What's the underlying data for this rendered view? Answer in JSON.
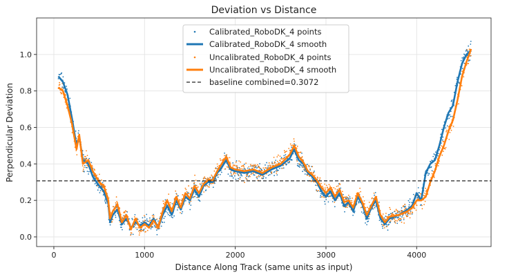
{
  "chart_data": {
    "type": "scatter",
    "title": "Deviation vs Distance",
    "xlabel": "Distance Along Track (same units as input)",
    "ylabel": "Perpendicular Deviation",
    "xlim": [
      -190,
      4820
    ],
    "ylim": [
      -0.053,
      1.2
    ],
    "xticks": [
      0,
      1000,
      2000,
      3000,
      4000
    ],
    "yticks": [
      0.0,
      0.2,
      0.4,
      0.6,
      0.8,
      1.0
    ],
    "xtick_labels": [
      "0",
      "1000",
      "2000",
      "3000",
      "4000"
    ],
    "ytick_labels": [
      "0.0",
      "0.2",
      "0.4",
      "0.6",
      "0.8",
      "1.0"
    ],
    "grid": true,
    "legend_position": "top-center",
    "baseline": {
      "name": "baseline combined=0.3072",
      "value": 0.3072,
      "color": "#000000",
      "style": "dashed"
    },
    "series": [
      {
        "name": "Calibrated_RoboDK_4 points",
        "kind": "points",
        "color": "#1f77b4",
        "follows": "Calibrated_RoboDK_4 smooth"
      },
      {
        "name": "Calibrated_RoboDK_4 smooth",
        "kind": "line",
        "color": "#1f77b4",
        "x": [
          50,
          100,
          150,
          200,
          250,
          280,
          320,
          380,
          430,
          500,
          550,
          600,
          620,
          650,
          700,
          750,
          800,
          850,
          900,
          950,
          1000,
          1050,
          1100,
          1150,
          1200,
          1250,
          1300,
          1350,
          1400,
          1450,
          1500,
          1550,
          1600,
          1650,
          1700,
          1750,
          1800,
          1850,
          1900,
          1950,
          2000,
          2100,
          2200,
          2300,
          2400,
          2500,
          2600,
          2650,
          2700,
          2750,
          2800,
          2850,
          2900,
          2950,
          3000,
          3050,
          3100,
          3150,
          3200,
          3250,
          3300,
          3350,
          3400,
          3450,
          3500,
          3550,
          3600,
          3650,
          3700,
          3800,
          3900,
          3950,
          4000,
          4050,
          4100,
          4150,
          4200,
          4250,
          4300,
          4350,
          4400,
          4450,
          4500,
          4550,
          4600
        ],
        "y": [
          0.88,
          0.85,
          0.78,
          0.65,
          0.5,
          0.55,
          0.42,
          0.4,
          0.33,
          0.28,
          0.25,
          0.18,
          0.08,
          0.12,
          0.15,
          0.07,
          0.1,
          0.05,
          0.08,
          0.06,
          0.08,
          0.06,
          0.1,
          0.05,
          0.12,
          0.17,
          0.12,
          0.2,
          0.15,
          0.22,
          0.2,
          0.26,
          0.22,
          0.28,
          0.3,
          0.3,
          0.35,
          0.38,
          0.42,
          0.37,
          0.36,
          0.35,
          0.36,
          0.34,
          0.37,
          0.39,
          0.43,
          0.48,
          0.42,
          0.4,
          0.35,
          0.33,
          0.3,
          0.25,
          0.22,
          0.25,
          0.2,
          0.24,
          0.17,
          0.19,
          0.14,
          0.22,
          0.18,
          0.1,
          0.16,
          0.2,
          0.1,
          0.07,
          0.1,
          0.12,
          0.15,
          0.17,
          0.24,
          0.2,
          0.35,
          0.4,
          0.42,
          0.5,
          0.6,
          0.68,
          0.72,
          0.85,
          0.95,
          1.0,
          1.02
        ]
      },
      {
        "name": "Uncalibrated_RoboDK_4 points",
        "kind": "points",
        "color": "#ff7f0e",
        "follows": "Uncalibrated_RoboDK_4 smooth"
      },
      {
        "name": "Uncalibrated_RoboDK_4 smooth",
        "kind": "line",
        "color": "#ff7f0e",
        "x": [
          50,
          100,
          150,
          200,
          250,
          280,
          320,
          380,
          430,
          500,
          550,
          600,
          620,
          650,
          700,
          750,
          800,
          850,
          900,
          950,
          1000,
          1050,
          1100,
          1150,
          1200,
          1250,
          1300,
          1350,
          1400,
          1450,
          1500,
          1550,
          1600,
          1650,
          1700,
          1750,
          1800,
          1850,
          1900,
          1950,
          2000,
          2100,
          2200,
          2300,
          2400,
          2500,
          2600,
          2650,
          2700,
          2750,
          2800,
          2850,
          2900,
          2950,
          3000,
          3050,
          3100,
          3150,
          3200,
          3250,
          3300,
          3350,
          3400,
          3450,
          3500,
          3550,
          3600,
          3650,
          3700,
          3800,
          3900,
          3950,
          4000,
          4050,
          4100,
          4150,
          4200,
          4250,
          4300,
          4350,
          4400,
          4450,
          4500,
          4550,
          4600
        ],
        "y": [
          0.82,
          0.8,
          0.72,
          0.62,
          0.48,
          0.56,
          0.4,
          0.42,
          0.36,
          0.3,
          0.28,
          0.2,
          0.1,
          0.14,
          0.18,
          0.08,
          0.12,
          0.04,
          0.1,
          0.05,
          0.07,
          0.05,
          0.09,
          0.05,
          0.14,
          0.2,
          0.14,
          0.22,
          0.16,
          0.24,
          0.21,
          0.28,
          0.24,
          0.29,
          0.31,
          0.31,
          0.36,
          0.4,
          0.44,
          0.38,
          0.37,
          0.36,
          0.37,
          0.35,
          0.38,
          0.4,
          0.45,
          0.5,
          0.44,
          0.41,
          0.36,
          0.34,
          0.31,
          0.27,
          0.24,
          0.27,
          0.22,
          0.26,
          0.19,
          0.2,
          0.16,
          0.24,
          0.19,
          0.12,
          0.17,
          0.22,
          0.12,
          0.08,
          0.11,
          0.12,
          0.14,
          0.16,
          0.2,
          0.2,
          0.22,
          0.3,
          0.36,
          0.44,
          0.5,
          0.58,
          0.64,
          0.75,
          0.88,
          0.96,
          1.03
        ]
      }
    ]
  }
}
